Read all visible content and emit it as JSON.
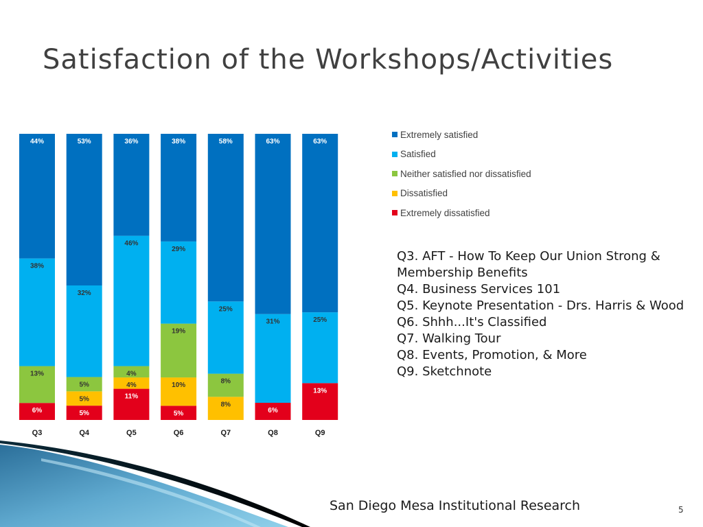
{
  "title": "Satisfaction of the Workshops/Activities",
  "chart_data": {
    "type": "bar",
    "stacked": true,
    "percent_stacked": true,
    "categories": [
      "Q3",
      "Q4",
      "Q5",
      "Q6",
      "Q7",
      "Q8",
      "Q9"
    ],
    "series": [
      {
        "name": "Extremely dissatisfied",
        "color": "#e3001b",
        "values": [
          6,
          5,
          11,
          5,
          0,
          6,
          13
        ]
      },
      {
        "name": "Dissatisfied",
        "color": "#ffc000",
        "values": [
          0,
          5,
          4,
          10,
          8,
          0,
          0
        ]
      },
      {
        "name": "Neither satisfied nor dissatisfied",
        "color": "#8cc63f",
        "values": [
          13,
          5,
          4,
          19,
          8,
          0,
          0
        ]
      },
      {
        "name": "Satisfied",
        "color": "#00b0f0",
        "values": [
          38,
          32,
          46,
          29,
          25,
          31,
          25
        ]
      },
      {
        "name": "Extremely satisfied",
        "color": "#0070c0",
        "values": [
          44,
          53,
          36,
          38,
          58,
          63,
          63
        ]
      }
    ],
    "legend_order": [
      "Extremely satisfied",
      "Satisfied",
      "Neither satisfied nor dissatisfied",
      "Dissatisfied",
      "Extremely dissatisfied"
    ],
    "legend_position": "right",
    "grid": false
  },
  "notes": [
    "Q3. AFT - How To Keep Our Union Strong & Membership Benefits",
    "Q4. Business Services 101",
    "Q5. Keynote Presentation - Drs. Harris & Wood",
    "Q6. Shhh...It's Classified",
    "Q7. Walking Tour",
    "Q8. Events, Promotion, & More",
    "Q9. Sketchnote"
  ],
  "footer": "San Diego Mesa Institutional Research",
  "page_number": "5"
}
